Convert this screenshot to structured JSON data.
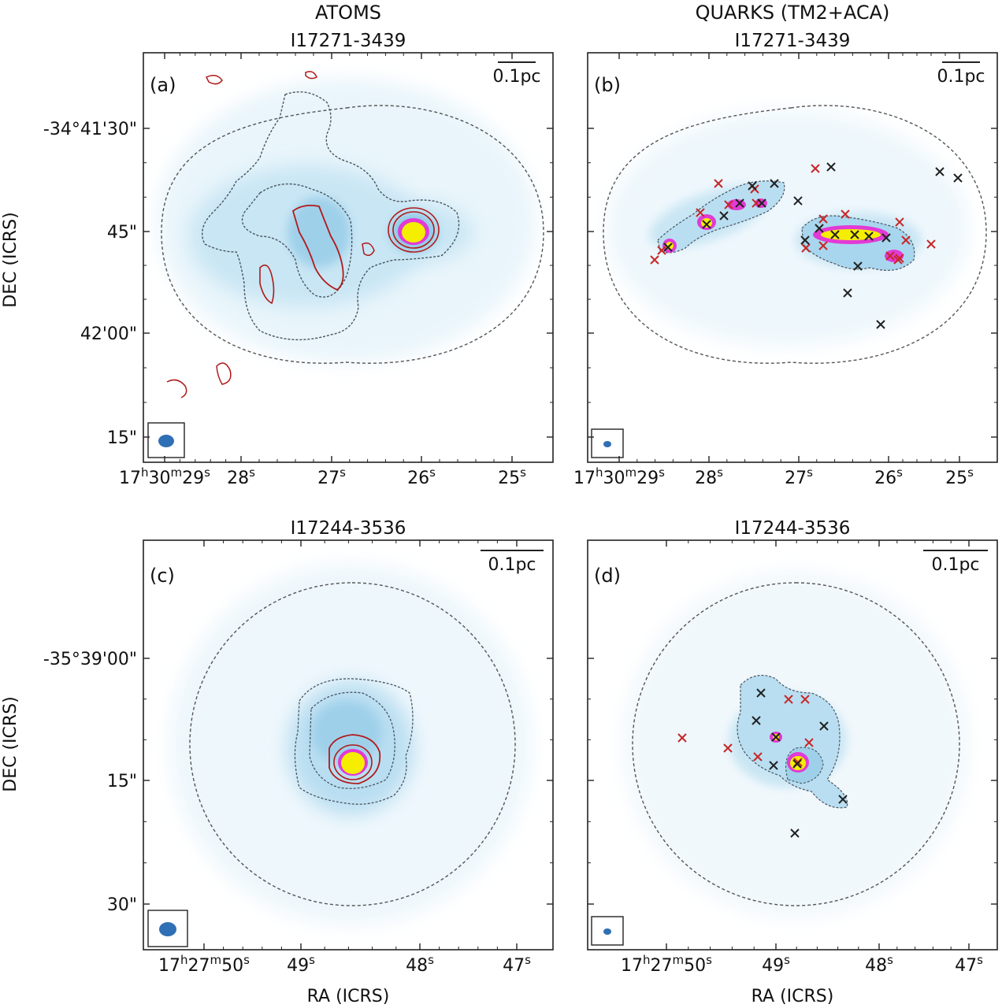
{
  "figure": {
    "col_titles": [
      "ATOMS",
      "QUARKS (TM2+ACA)"
    ],
    "xlabel": "RA (ICRS)",
    "ylabel": "DEC (ICRS)",
    "scalebar_label": "0.1pc"
  },
  "colors": {
    "axes": "#222222",
    "dashed_outline": "#555555",
    "contour_gray": "#4a5560",
    "contour_red": "#b01a1a",
    "core_magenta": "#e23ad6",
    "core_yellow": "#f5ee00",
    "beam_fill": "#2f6fb5",
    "marker_red": "#c62828",
    "marker_black": "#222222",
    "emission_light": "#d8eef8",
    "emission_mid": "#9fd0ea",
    "emission_strong": "#5fb0dc"
  },
  "chart_data": [
    {
      "type": "heatmap",
      "panel": "(a)",
      "title": "I17271-3439",
      "column": "ATOMS",
      "xticks": [
        {
          "h": "17",
          "m": "30",
          "s": "29"
        },
        {
          "s": "28"
        },
        {
          "s": "27"
        },
        {
          "s": "26"
        },
        {
          "s": "25"
        }
      ],
      "yticks": [
        "-34°41'30\"",
        "45\"",
        "42'00\"",
        "15\""
      ],
      "scalebar": "0.1pc",
      "beam": "large",
      "markers": []
    },
    {
      "type": "heatmap",
      "panel": "(b)",
      "title": "I17271-3439",
      "column": "QUARKS (TM2+ACA)",
      "xticks": [
        {
          "h": "17",
          "m": "30",
          "s": "29"
        },
        {
          "s": "28"
        },
        {
          "s": "27"
        },
        {
          "s": "26"
        },
        {
          "s": "25"
        }
      ],
      "yticks": [],
      "scalebar": "0.1pc",
      "beam": "small",
      "markers_red": 18,
      "markers_black": 20
    },
    {
      "type": "heatmap",
      "panel": "(c)",
      "title": "I17244-3536",
      "column": "ATOMS",
      "xticks": [
        {
          "h": "17",
          "m": "27",
          "s": "50"
        },
        {
          "s": "49"
        },
        {
          "s": "48"
        },
        {
          "s": "47"
        }
      ],
      "yticks": [
        "-35°39'00\"",
        "15\"",
        "30\""
      ],
      "scalebar": "0.1pc",
      "beam": "large",
      "markers": []
    },
    {
      "type": "heatmap",
      "panel": "(d)",
      "title": "I17244-3536",
      "column": "QUARKS (TM2+ACA)",
      "xticks": [
        {
          "h": "17",
          "m": "27",
          "s": "50"
        },
        {
          "s": "49"
        },
        {
          "s": "48"
        },
        {
          "s": "47"
        }
      ],
      "yticks": [],
      "scalebar": "0.1pc",
      "beam": "small",
      "markers_red": 8,
      "markers_black": 8
    }
  ]
}
